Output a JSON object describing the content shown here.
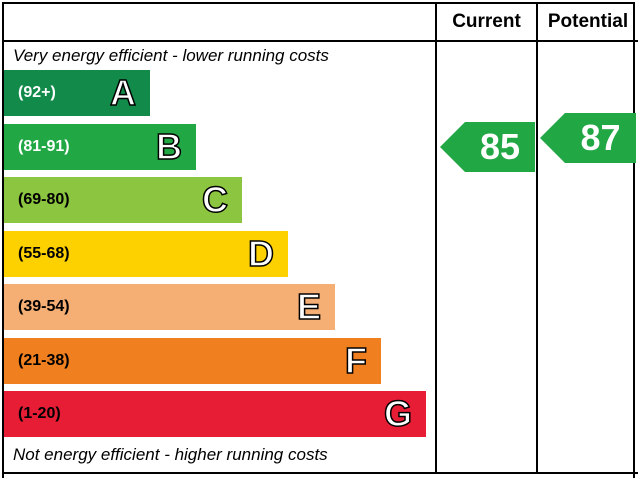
{
  "chart_data": {
    "type": "bar",
    "columns": [
      "Current",
      "Potential"
    ],
    "top_note": "Very energy efficient - lower running costs",
    "bottom_note": "Not energy efficient - higher running costs",
    "bands": [
      {
        "letter": "A",
        "range": "(92+)",
        "min": 92,
        "max": 100,
        "color": "#118a4a",
        "text_color": "#ffffff"
      },
      {
        "letter": "B",
        "range": "(81-91)",
        "min": 81,
        "max": 91,
        "color": "#21a845",
        "text_color": "#ffffff"
      },
      {
        "letter": "C",
        "range": "(69-80)",
        "min": 69,
        "max": 80,
        "color": "#8cc540",
        "text_color": "#000000"
      },
      {
        "letter": "D",
        "range": "(55-68)",
        "min": 55,
        "max": 68,
        "color": "#fdd100",
        "text_color": "#000000"
      },
      {
        "letter": "E",
        "range": "(39-54)",
        "min": 39,
        "max": 54,
        "color": "#f5ae74",
        "text_color": "#000000"
      },
      {
        "letter": "F",
        "range": "(21-38)",
        "min": 21,
        "max": 38,
        "color": "#ef7f1f",
        "text_color": "#000000"
      },
      {
        "letter": "G",
        "range": "(1-20)",
        "min": 1,
        "max": 20,
        "color": "#e71d36",
        "text_color": "#000000"
      }
    ],
    "current": {
      "value": 85,
      "band": "B",
      "color": "#21a845"
    },
    "potential": {
      "value": 87,
      "band": "B",
      "color": "#21a845"
    }
  }
}
